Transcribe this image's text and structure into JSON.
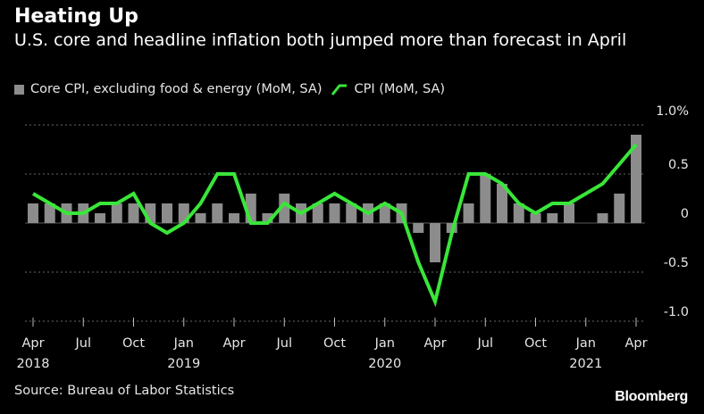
{
  "chart_data": {
    "type": "bar+line",
    "title": "Heating Up",
    "subtitle": "U.S. core and headline inflation both jumped more than forecast in April",
    "legend": [
      {
        "name": "Core CPI, excluding food & energy (MoM, SA)",
        "kind": "bar",
        "color": "#8c8c8c"
      },
      {
        "name": "CPI (MoM, SA)",
        "kind": "line",
        "color": "#39e639"
      }
    ],
    "ylim": [
      -1.0,
      1.0
    ],
    "y_ticks": [
      {
        "value": 1.0,
        "label": "1.0%"
      },
      {
        "value": 0.5,
        "label": "0.5"
      },
      {
        "value": 0,
        "label": "0"
      },
      {
        "value": -0.5,
        "label": "-0.5"
      },
      {
        "value": -1.0,
        "label": "-1.0"
      }
    ],
    "months": [
      "2018-04",
      "2018-05",
      "2018-06",
      "2018-07",
      "2018-08",
      "2018-09",
      "2018-10",
      "2018-11",
      "2018-12",
      "2019-01",
      "2019-02",
      "2019-03",
      "2019-04",
      "2019-05",
      "2019-06",
      "2019-07",
      "2019-08",
      "2019-09",
      "2019-10",
      "2019-11",
      "2019-12",
      "2020-01",
      "2020-02",
      "2020-03",
      "2020-04",
      "2020-05",
      "2020-06",
      "2020-07",
      "2020-08",
      "2020-09",
      "2020-10",
      "2020-11",
      "2020-12",
      "2021-01",
      "2021-02",
      "2021-03",
      "2021-04"
    ],
    "x_ticks": [
      {
        "index": 0,
        "label": "Apr",
        "year": "2018"
      },
      {
        "index": 3,
        "label": "Jul",
        "year": ""
      },
      {
        "index": 6,
        "label": "Oct",
        "year": ""
      },
      {
        "index": 9,
        "label": "Jan",
        "year": "2019"
      },
      {
        "index": 12,
        "label": "Apr",
        "year": ""
      },
      {
        "index": 15,
        "label": "Jul",
        "year": ""
      },
      {
        "index": 18,
        "label": "Oct",
        "year": ""
      },
      {
        "index": 21,
        "label": "Jan",
        "year": "2020"
      },
      {
        "index": 24,
        "label": "Apr",
        "year": ""
      },
      {
        "index": 27,
        "label": "Jul",
        "year": ""
      },
      {
        "index": 30,
        "label": "Oct",
        "year": ""
      },
      {
        "index": 33,
        "label": "Jan",
        "year": "2021"
      },
      {
        "index": 36,
        "label": "Apr",
        "year": ""
      }
    ],
    "series": [
      {
        "name": "Core CPI, excluding food & energy (MoM, SA)",
        "values": [
          0.2,
          0.2,
          0.2,
          0.2,
          0.1,
          0.2,
          0.2,
          0.2,
          0.2,
          0.2,
          0.1,
          0.2,
          0.1,
          0.3,
          0.1,
          0.3,
          0.2,
          0.2,
          0.2,
          0.2,
          0.2,
          0.2,
          0.2,
          -0.1,
          -0.4,
          -0.1,
          0.2,
          0.5,
          0.4,
          0.2,
          0.1,
          0.1,
          0.2,
          0.0,
          0.1,
          0.3,
          0.9
        ]
      },
      {
        "name": "CPI (MoM, SA)",
        "values": [
          0.3,
          0.2,
          0.1,
          0.1,
          0.2,
          0.2,
          0.3,
          0.0,
          -0.1,
          0.0,
          0.2,
          0.5,
          0.5,
          0.0,
          0.0,
          0.2,
          0.1,
          0.2,
          0.3,
          0.2,
          0.1,
          0.2,
          0.1,
          -0.4,
          -0.8,
          -0.1,
          0.5,
          0.5,
          0.4,
          0.2,
          0.1,
          0.2,
          0.2,
          0.3,
          0.4,
          0.6,
          0.8
        ]
      }
    ]
  },
  "footer": {
    "source": "Source: Bureau of Labor Statistics",
    "brand": "Bloomberg"
  }
}
